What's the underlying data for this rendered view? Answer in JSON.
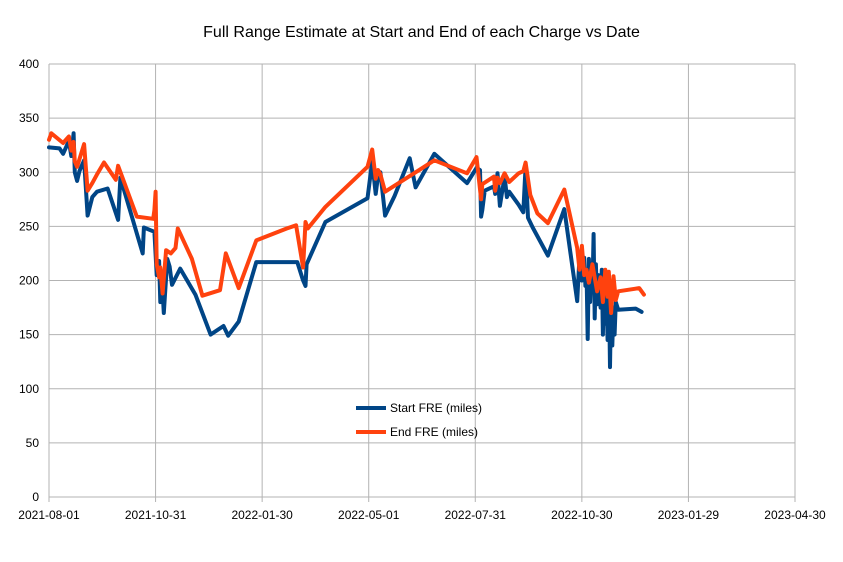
{
  "chart_data": {
    "type": "line",
    "title": "Full Range Estimate at Start and End of each Charge vs Date",
    "xlabel": "",
    "ylabel": "",
    "x_type": "date",
    "xlim": [
      "2021-08-01",
      "2023-04-30"
    ],
    "x_ticks": [
      "2021-08-01",
      "2021-10-31",
      "2022-01-30",
      "2022-05-01",
      "2022-07-31",
      "2022-10-30",
      "2023-01-29",
      "2023-04-30"
    ],
    "ylim": [
      0,
      400
    ],
    "y_ticks": [
      0,
      50,
      100,
      150,
      200,
      250,
      300,
      350,
      400
    ],
    "grid": true,
    "legend": "center",
    "series": [
      {
        "name": "Start FRE (miles)",
        "color": "#004586",
        "points": [
          [
            "2021-08-01",
            323
          ],
          [
            "2021-08-10",
            322
          ],
          [
            "2021-08-13",
            317
          ],
          [
            "2021-08-18",
            329
          ],
          [
            "2021-08-20",
            315
          ],
          [
            "2021-08-22",
            336
          ],
          [
            "2021-08-23",
            300
          ],
          [
            "2021-08-25",
            292
          ],
          [
            "2021-08-27",
            301
          ],
          [
            "2021-08-31",
            311
          ],
          [
            "2021-09-03",
            260
          ],
          [
            "2021-09-07",
            277
          ],
          [
            "2021-09-11",
            282
          ],
          [
            "2021-09-20",
            285
          ],
          [
            "2021-09-29",
            256
          ],
          [
            "2021-10-01",
            295
          ],
          [
            "2021-10-20",
            225
          ],
          [
            "2021-10-21",
            249
          ],
          [
            "2021-10-30",
            245
          ],
          [
            "2021-11-01",
            205
          ],
          [
            "2021-11-03",
            218
          ],
          [
            "2021-11-04",
            180
          ],
          [
            "2021-11-06",
            190
          ],
          [
            "2021-11-07",
            170
          ],
          [
            "2021-11-10",
            220
          ],
          [
            "2021-11-12",
            213
          ],
          [
            "2021-11-14",
            196
          ],
          [
            "2021-11-21",
            211
          ],
          [
            "2021-12-04",
            187
          ],
          [
            "2021-12-17",
            150
          ],
          [
            "2021-12-28",
            158
          ],
          [
            "2022-01-01",
            149
          ],
          [
            "2022-01-10",
            162
          ],
          [
            "2022-01-25",
            217
          ],
          [
            "2022-03-01",
            217
          ],
          [
            "2022-03-06",
            200
          ],
          [
            "2022-03-08",
            195
          ],
          [
            "2022-03-09",
            215
          ],
          [
            "2022-03-25",
            254
          ],
          [
            "2022-04-30",
            276
          ],
          [
            "2022-05-04",
            310
          ],
          [
            "2022-05-07",
            280
          ],
          [
            "2022-05-09",
            297
          ],
          [
            "2022-05-11",
            300
          ],
          [
            "2022-05-15",
            260
          ],
          [
            "2022-05-23",
            278
          ],
          [
            "2022-06-05",
            313
          ],
          [
            "2022-06-10",
            286
          ],
          [
            "2022-06-26",
            317
          ],
          [
            "2022-07-24",
            290
          ],
          [
            "2022-08-01",
            304
          ],
          [
            "2022-08-04",
            302
          ],
          [
            "2022-08-05",
            259
          ],
          [
            "2022-08-06",
            265
          ],
          [
            "2022-08-08",
            283
          ],
          [
            "2022-08-16",
            287
          ],
          [
            "2022-08-17",
            280
          ],
          [
            "2022-08-19",
            299
          ],
          [
            "2022-08-21",
            269
          ],
          [
            "2022-08-25",
            296
          ],
          [
            "2022-08-27",
            277
          ],
          [
            "2022-08-29",
            282
          ],
          [
            "2022-09-06",
            270
          ],
          [
            "2022-09-10",
            263
          ],
          [
            "2022-09-12",
            306
          ],
          [
            "2022-09-14",
            258
          ],
          [
            "2022-09-18",
            249
          ],
          [
            "2022-10-01",
            223
          ],
          [
            "2022-10-15",
            266
          ],
          [
            "2022-10-26",
            181
          ],
          [
            "2022-10-28",
            222
          ],
          [
            "2022-10-30",
            200
          ],
          [
            "2022-11-01",
            221
          ],
          [
            "2022-11-02",
            195
          ],
          [
            "2022-11-03",
            210
          ],
          [
            "2022-11-04",
            146
          ],
          [
            "2022-11-05",
            220
          ],
          [
            "2022-11-06",
            180
          ],
          [
            "2022-11-07",
            210
          ],
          [
            "2022-11-08",
            190
          ],
          [
            "2022-11-09",
            243
          ],
          [
            "2022-11-10",
            165
          ],
          [
            "2022-11-11",
            215
          ],
          [
            "2022-11-12",
            178
          ],
          [
            "2022-11-13",
            205
          ],
          [
            "2022-11-14",
            185
          ],
          [
            "2022-11-15",
            175
          ],
          [
            "2022-11-16",
            210
          ],
          [
            "2022-11-17",
            150
          ],
          [
            "2022-11-18",
            205
          ],
          [
            "2022-11-19",
            160
          ],
          [
            "2022-11-20",
            185
          ],
          [
            "2022-11-21",
            145
          ],
          [
            "2022-11-22",
            205
          ],
          [
            "2022-11-23",
            120
          ],
          [
            "2022-11-24",
            185
          ],
          [
            "2022-11-25",
            140
          ],
          [
            "2022-11-26",
            175
          ],
          [
            "2022-11-27",
            150
          ],
          [
            "2022-11-28",
            180
          ],
          [
            "2022-11-30",
            173
          ],
          [
            "2022-12-15",
            174
          ],
          [
            "2022-12-20",
            171
          ]
        ]
      },
      {
        "name": "End FRE (miles)",
        "color": "#ff420e",
        "points": [
          [
            "2021-08-01",
            330
          ],
          [
            "2021-08-03",
            336
          ],
          [
            "2021-08-13",
            327
          ],
          [
            "2021-08-18",
            333
          ],
          [
            "2021-08-20",
            320
          ],
          [
            "2021-08-22",
            328
          ],
          [
            "2021-08-23",
            310
          ],
          [
            "2021-08-25",
            305
          ],
          [
            "2021-08-31",
            326
          ],
          [
            "2021-09-03",
            283
          ],
          [
            "2021-09-07",
            290
          ],
          [
            "2021-09-11",
            298
          ],
          [
            "2021-09-17",
            309
          ],
          [
            "2021-09-27",
            293
          ],
          [
            "2021-09-29",
            306
          ],
          [
            "2021-10-15",
            259
          ],
          [
            "2021-10-29",
            257
          ],
          [
            "2021-10-30",
            265
          ],
          [
            "2021-10-31",
            282
          ],
          [
            "2021-11-01",
            215
          ],
          [
            "2021-11-03",
            203
          ],
          [
            "2021-11-04",
            212
          ],
          [
            "2021-11-06",
            188
          ],
          [
            "2021-11-09",
            228
          ],
          [
            "2021-11-13",
            225
          ],
          [
            "2021-11-17",
            230
          ],
          [
            "2021-11-19",
            248
          ],
          [
            "2021-12-01",
            220
          ],
          [
            "2021-12-10",
            186
          ],
          [
            "2021-12-25",
            191
          ],
          [
            "2021-12-30",
            225
          ],
          [
            "2022-01-10",
            193
          ],
          [
            "2022-01-25",
            237
          ],
          [
            "2022-02-20",
            248
          ],
          [
            "2022-02-28",
            251
          ],
          [
            "2022-03-06",
            212
          ],
          [
            "2022-03-08",
            254
          ],
          [
            "2022-03-10",
            248
          ],
          [
            "2022-03-25",
            268
          ],
          [
            "2022-04-30",
            305
          ],
          [
            "2022-05-04",
            321
          ],
          [
            "2022-05-07",
            294
          ],
          [
            "2022-05-09",
            302
          ],
          [
            "2022-05-11",
            298
          ],
          [
            "2022-05-15",
            282
          ],
          [
            "2022-06-10",
            300
          ],
          [
            "2022-06-26",
            311
          ],
          [
            "2022-07-10",
            305
          ],
          [
            "2022-07-24",
            299
          ],
          [
            "2022-08-01",
            314
          ],
          [
            "2022-08-05",
            275
          ],
          [
            "2022-08-06",
            289
          ],
          [
            "2022-08-16",
            296
          ],
          [
            "2022-08-17",
            283
          ],
          [
            "2022-08-19",
            295
          ],
          [
            "2022-08-21",
            290
          ],
          [
            "2022-08-25",
            299
          ],
          [
            "2022-08-29",
            291
          ],
          [
            "2022-09-06",
            299
          ],
          [
            "2022-09-10",
            301
          ],
          [
            "2022-09-12",
            309
          ],
          [
            "2022-09-16",
            279
          ],
          [
            "2022-09-22",
            262
          ],
          [
            "2022-10-01",
            253
          ],
          [
            "2022-10-15",
            284
          ],
          [
            "2022-10-26",
            230
          ],
          [
            "2022-10-28",
            210
          ],
          [
            "2022-10-30",
            232
          ],
          [
            "2022-11-01",
            205
          ],
          [
            "2022-11-03",
            210
          ],
          [
            "2022-11-05",
            198
          ],
          [
            "2022-11-08",
            215
          ],
          [
            "2022-11-12",
            190
          ],
          [
            "2022-11-15",
            203
          ],
          [
            "2022-11-17",
            180
          ],
          [
            "2022-11-19",
            210
          ],
          [
            "2022-11-21",
            185
          ],
          [
            "2022-11-22",
            208
          ],
          [
            "2022-11-24",
            170
          ],
          [
            "2022-11-26",
            204
          ],
          [
            "2022-11-28",
            182
          ],
          [
            "2022-11-30",
            190
          ],
          [
            "2022-12-18",
            193
          ],
          [
            "2022-12-22",
            187
          ]
        ]
      }
    ]
  }
}
